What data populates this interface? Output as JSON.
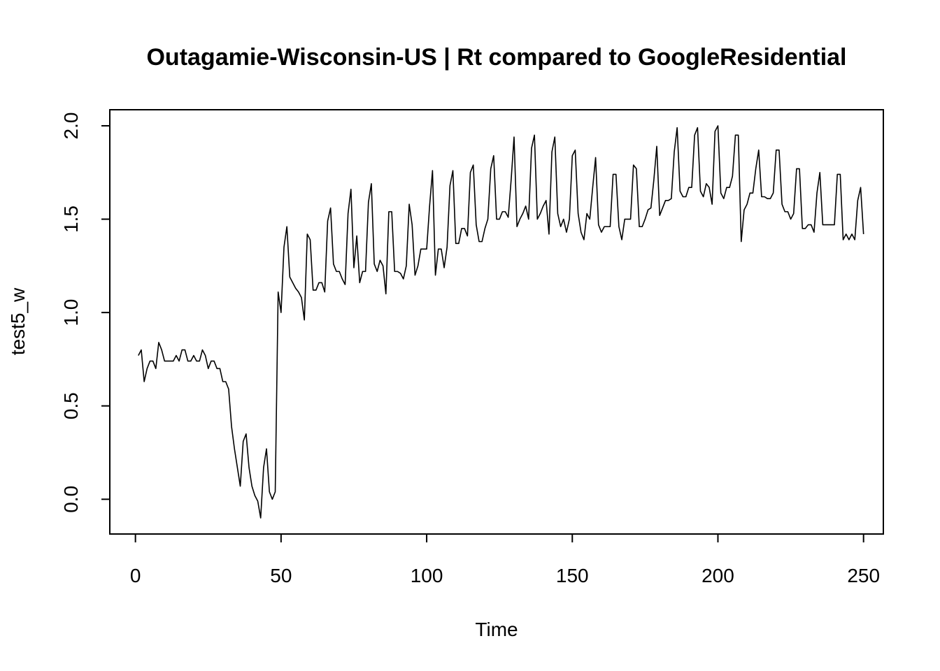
{
  "chart_data": {
    "type": "line",
    "title": "Outagamie-Wisconsin-US | Rt compared to GoogleResidential",
    "xlabel": "Time",
    "ylabel": "test5_w",
    "xlim": [
      -8.8,
      256.8
    ],
    "ylim": [
      -0.186,
      2.086
    ],
    "x_ticks": [
      0,
      50,
      100,
      150,
      200,
      250
    ],
    "y_ticks": [
      0.0,
      0.5,
      1.0,
      1.5,
      2.0
    ],
    "x_tick_labels": [
      "0",
      "50",
      "100",
      "150",
      "200",
      "250"
    ],
    "y_tick_labels": [
      "0.0",
      "0.5",
      "1.0",
      "1.5",
      "2.0"
    ],
    "grid": false,
    "legend": "none",
    "line_color": "#000000",
    "series": [
      {
        "x_start": 1,
        "values": [
          0.77,
          0.8,
          0.63,
          0.7,
          0.74,
          0.74,
          0.7,
          0.84,
          0.8,
          0.74,
          0.74,
          0.74,
          0.74,
          0.77,
          0.74,
          0.8,
          0.8,
          0.74,
          0.74,
          0.77,
          0.74,
          0.74,
          0.8,
          0.77,
          0.7,
          0.74,
          0.74,
          0.7,
          0.7,
          0.63,
          0.63,
          0.59,
          0.39,
          0.27,
          0.17,
          0.07,
          0.31,
          0.35,
          0.17,
          0.07,
          0.02,
          -0.01,
          -0.1,
          0.17,
          0.27,
          0.04,
          0.0,
          0.04,
          1.11,
          1.0,
          1.35,
          1.46,
          1.19,
          1.16,
          1.13,
          1.11,
          1.08,
          0.96,
          1.42,
          1.39,
          1.12,
          1.12,
          1.16,
          1.16,
          1.11,
          1.49,
          1.56,
          1.26,
          1.22,
          1.22,
          1.18,
          1.15,
          1.53,
          1.66,
          1.24,
          1.41,
          1.16,
          1.22,
          1.22,
          1.59,
          1.69,
          1.26,
          1.22,
          1.28,
          1.25,
          1.1,
          1.54,
          1.54,
          1.22,
          1.22,
          1.21,
          1.18,
          1.25,
          1.58,
          1.47,
          1.2,
          1.25,
          1.34,
          1.34,
          1.34,
          1.57,
          1.76,
          1.2,
          1.34,
          1.34,
          1.24,
          1.35,
          1.68,
          1.76,
          1.37,
          1.37,
          1.45,
          1.45,
          1.41,
          1.75,
          1.79,
          1.47,
          1.38,
          1.38,
          1.45,
          1.5,
          1.77,
          1.84,
          1.5,
          1.5,
          1.54,
          1.54,
          1.51,
          1.71,
          1.94,
          1.46,
          1.5,
          1.53,
          1.57,
          1.5,
          1.88,
          1.95,
          1.5,
          1.53,
          1.57,
          1.6,
          1.42,
          1.86,
          1.94,
          1.53,
          1.46,
          1.5,
          1.43,
          1.5,
          1.84,
          1.87,
          1.53,
          1.43,
          1.39,
          1.53,
          1.5,
          1.67,
          1.83,
          1.47,
          1.43,
          1.46,
          1.46,
          1.46,
          1.74,
          1.74,
          1.46,
          1.39,
          1.5,
          1.5,
          1.5,
          1.79,
          1.77,
          1.46,
          1.46,
          1.5,
          1.55,
          1.56,
          1.71,
          1.89,
          1.52,
          1.56,
          1.6,
          1.6,
          1.61,
          1.86,
          1.99,
          1.65,
          1.62,
          1.62,
          1.67,
          1.67,
          1.95,
          1.99,
          1.65,
          1.62,
          1.69,
          1.67,
          1.58,
          1.97,
          2.0,
          1.64,
          1.61,
          1.67,
          1.67,
          1.73,
          1.95,
          1.95,
          1.38,
          1.55,
          1.58,
          1.64,
          1.64,
          1.77,
          1.87,
          1.62,
          1.62,
          1.61,
          1.61,
          1.64,
          1.87,
          1.87,
          1.58,
          1.54,
          1.54,
          1.5,
          1.53,
          1.77,
          1.77,
          1.45,
          1.45,
          1.47,
          1.47,
          1.43,
          1.64,
          1.75,
          1.47,
          1.47,
          1.47,
          1.47,
          1.47,
          1.74,
          1.74,
          1.39,
          1.42,
          1.39,
          1.42,
          1.39,
          1.6,
          1.67,
          1.42
        ]
      }
    ]
  }
}
